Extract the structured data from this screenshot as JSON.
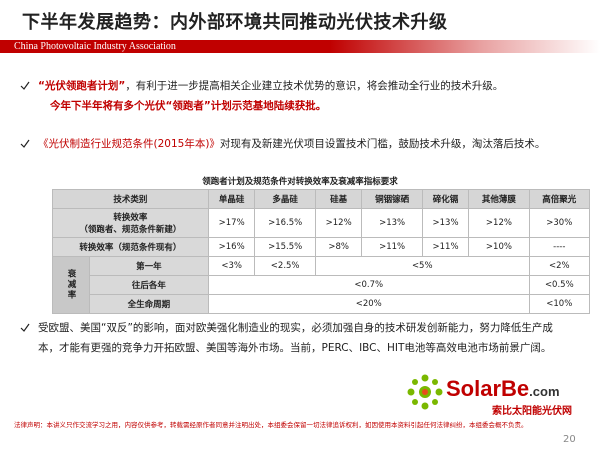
{
  "header": {
    "title": "下半年发展趋势：内外部环境共同推动光伏技术升级",
    "subtitle": "China Photovoltaic Industry Association"
  },
  "bullets": [
    {
      "highlight": "“光伏领跑者计划”",
      "text": "，有利于进一步提高相关企业建立技术优势的意识，将会推动全行业的技术升级。",
      "note": "今年下半年将有多个光伏“领跑者”计划示范基地陆续获批。"
    },
    {
      "highlight": "《光伏制造行业规范条件(2015年本)》",
      "text": "对现有及新建光伏项目设置技术门槛，鼓励技术升级，淘汰落后技术。"
    },
    {
      "text": "受欧盟、美国“双反”的影响，面对欧美强化制造业的现实，必须加强自身的技术研发创新能力，努力降低生产成本，才能有更强的竞争力开拓欧盟、美国等海外市场。当前，PERC、IBC、HIT电池等高效电池市场前景广阔。"
    }
  ],
  "table": {
    "title": "领跑者计划及规范条件对转换效率及衰减率指标要求",
    "header": [
      "技术类别",
      "单晶硅",
      "多晶硅",
      "硅基",
      "铜铟镓硒",
      "碲化镉",
      "其他薄膜",
      "高倍聚光"
    ],
    "rows": [
      {
        "label": [
          "转换效率",
          "（领跑者、规范条件新建）"
        ],
        "cells": [
          ">17%",
          ">16.5%",
          ">12%",
          ">13%",
          ">13%",
          ">12%",
          ">30%"
        ]
      },
      {
        "label": [
          "转换效率（规范条件现有）"
        ],
        "cells": [
          ">16%",
          ">15.5%",
          ">8%",
          ">11%",
          ">11%",
          ">10%",
          "----"
        ]
      }
    ],
    "decay_label": "衰减率",
    "decay_rows": [
      {
        "label": "第一年",
        "cells": [
          "<3%",
          "<2.5%",
          "<5%",
          "<2%"
        ]
      },
      {
        "label": "往后各年",
        "cells": [
          "<0.7%",
          "<0.5%"
        ]
      },
      {
        "label": "全生命周期",
        "cells": [
          "<20%",
          "<10%"
        ]
      }
    ]
  },
  "footer": {
    "legal": "法律声明：本讲义只作交流学习之用，内容仅供参考，转载需经原作者同意并注明出处，本组委会保留一切法律追诉权利，如因使用本资料引起任何法律纠纷，本组委会概不负责。",
    "logo": "SolarBe",
    "logo_domain": ".com",
    "logo_caption": "索比太阳能光伏网",
    "page": "20"
  }
}
